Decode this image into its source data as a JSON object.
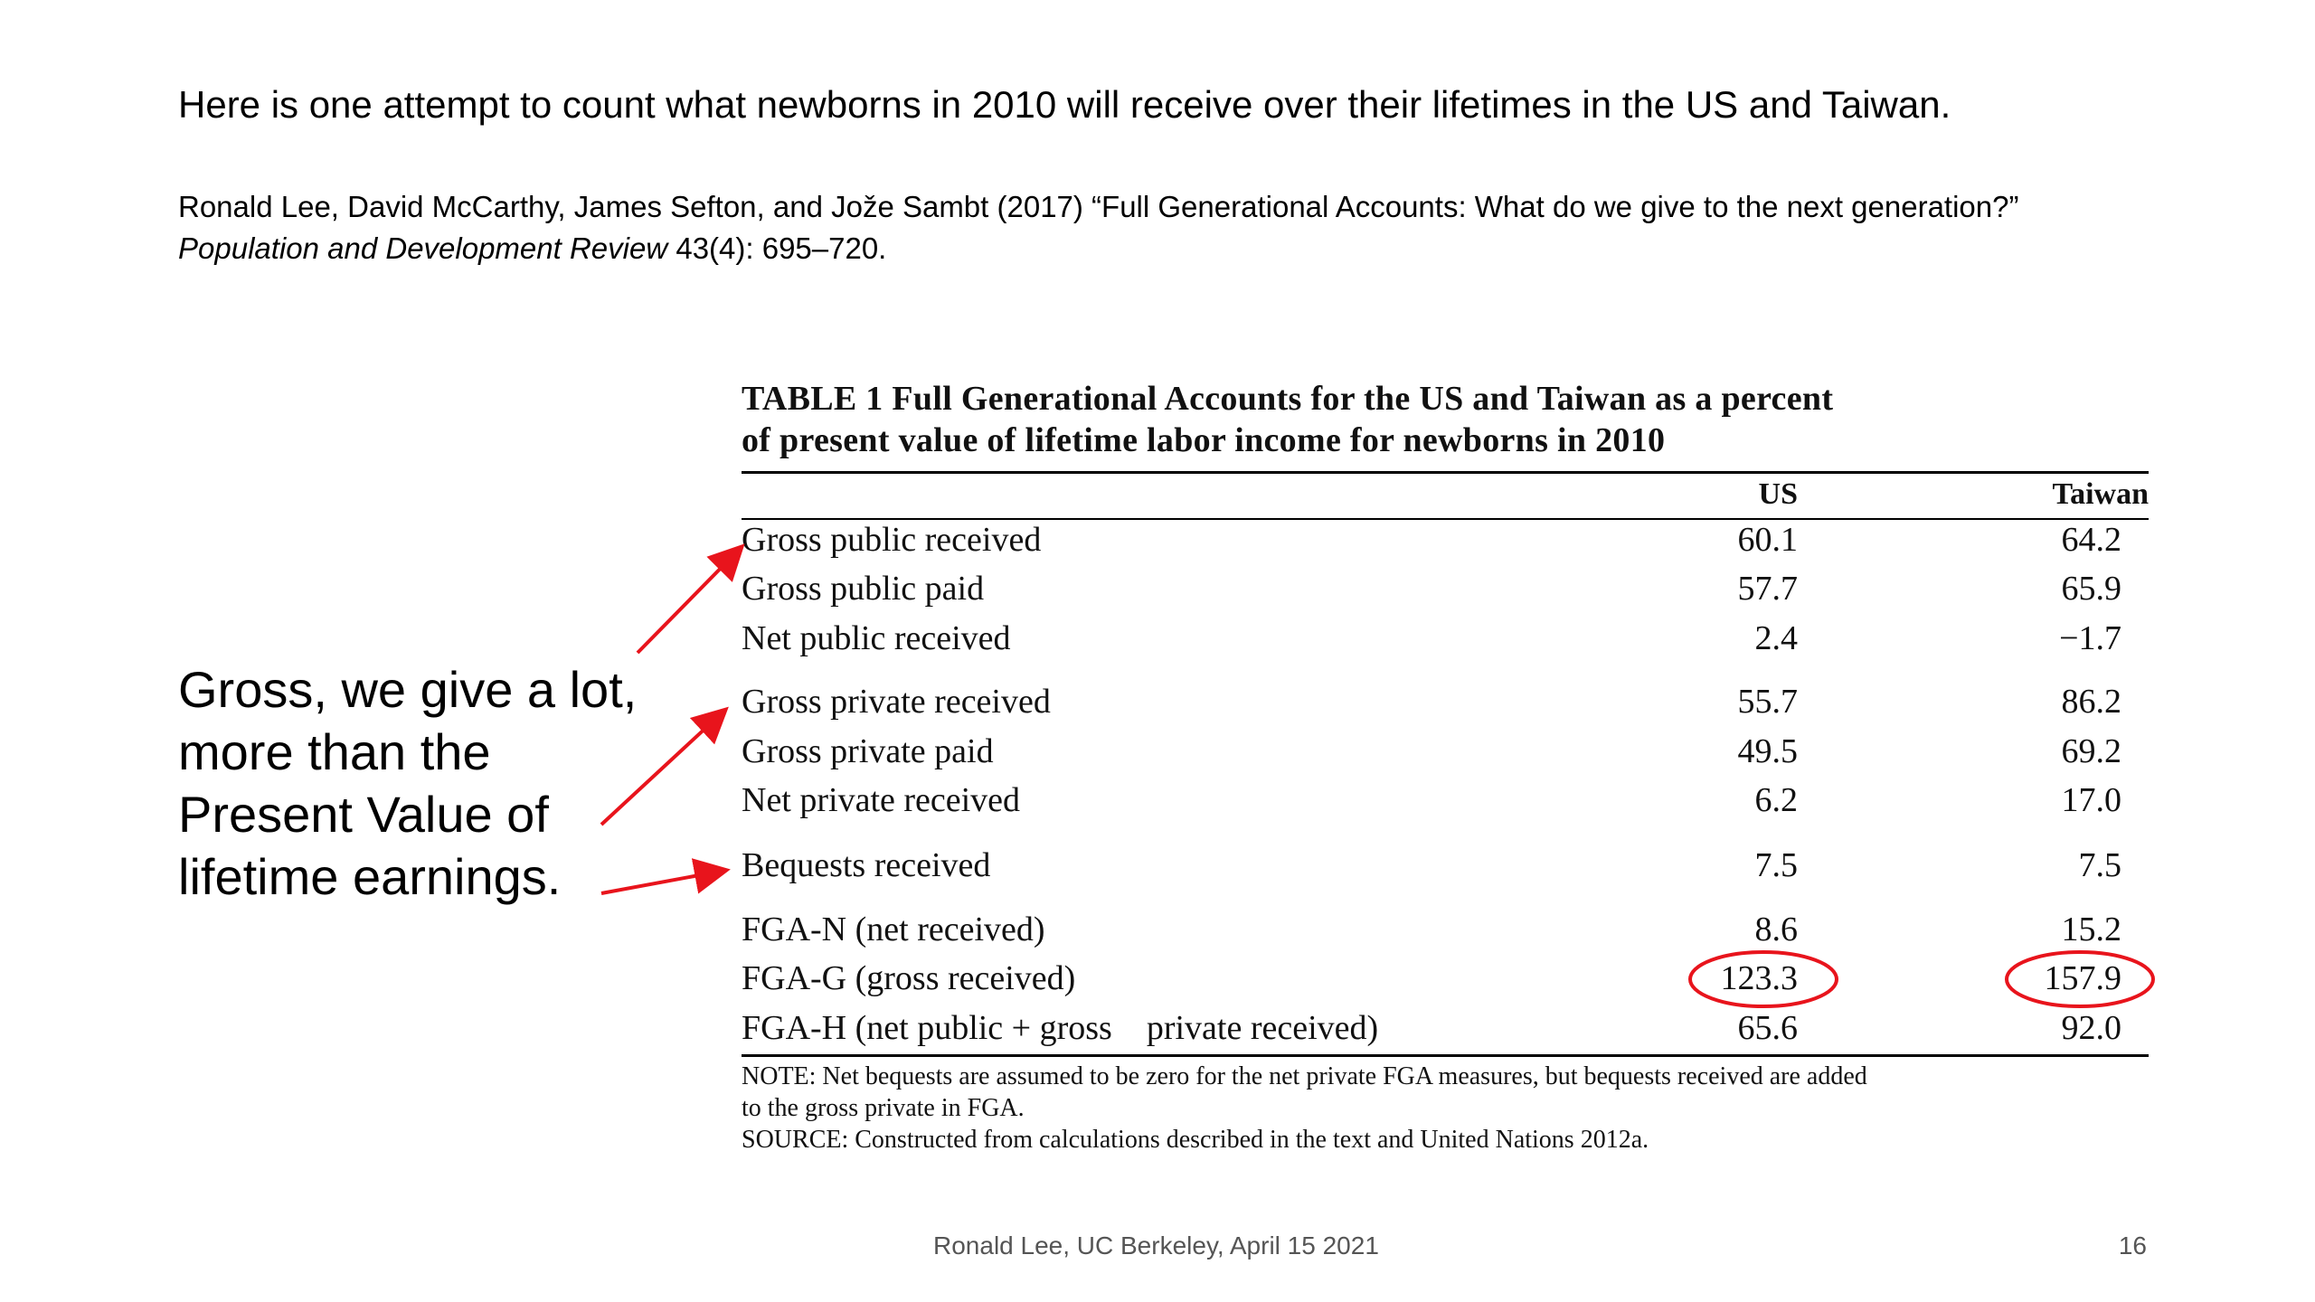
{
  "slide": {
    "headline": "Here is one attempt to count what newborns in 2010 will receive over their lifetimes in the US and Taiwan.",
    "citation_line1": "Ronald Lee, David McCarthy, James Sefton, and Jože Sambt (2017) “Full Generational Accounts: What do we give to the next generation?”",
    "citation_journal": "Population and Development Review",
    "citation_rest": " 43(4): 695–720.",
    "callout_lines": [
      "Gross, we give a lot,",
      "more than the",
      "Present Value of",
      "lifetime earnings."
    ],
    "footer": "Ronald Lee, UC Berkeley, April 15 2021",
    "page_number": "16"
  },
  "table": {
    "title_line1": "TABLE 1  Full Generational Accounts for the US and Taiwan as a percent",
    "title_line2": "of present value of lifetime labor income for newborns in 2010",
    "columns": [
      "US",
      "Taiwan"
    ],
    "rows": [
      {
        "label": "Gross public received",
        "us": "60.1",
        "taiwan": "64.2"
      },
      {
        "label": "Gross public paid",
        "us": "57.7",
        "taiwan": "65.9"
      },
      {
        "label": "Net public received",
        "us": "2.4",
        "taiwan": "−1.7"
      },
      {
        "label": "Gross private received",
        "us": "55.7",
        "taiwan": "86.2"
      },
      {
        "label": "Gross private paid",
        "us": "49.5",
        "taiwan": "69.2"
      },
      {
        "label": "Net private received",
        "us": "6.2",
        "taiwan": "17.0"
      },
      {
        "label": "Bequests received",
        "us": "7.5",
        "taiwan": "7.5"
      },
      {
        "label": "FGA-N (net received)",
        "us": "8.6",
        "taiwan": "15.2"
      },
      {
        "label": "FGA-G (gross received)",
        "us": "123.3",
        "taiwan": "157.9"
      },
      {
        "label": "FGA-H (net public + gross    private received)",
        "us": "65.6",
        "taiwan": "92.0"
      }
    ],
    "note_line1": "NOTE: Net bequests are assumed to be zero for the net private FGA measures, but bequests received are added",
    "note_line2": "to the gross private in FGA.",
    "source": "SOURCE: Constructed from calculations described in the text and United Nations 2012a."
  },
  "annotations": {
    "arrow_color": "#e8141c",
    "circled_values": [
      "123.3",
      "157.9"
    ]
  }
}
